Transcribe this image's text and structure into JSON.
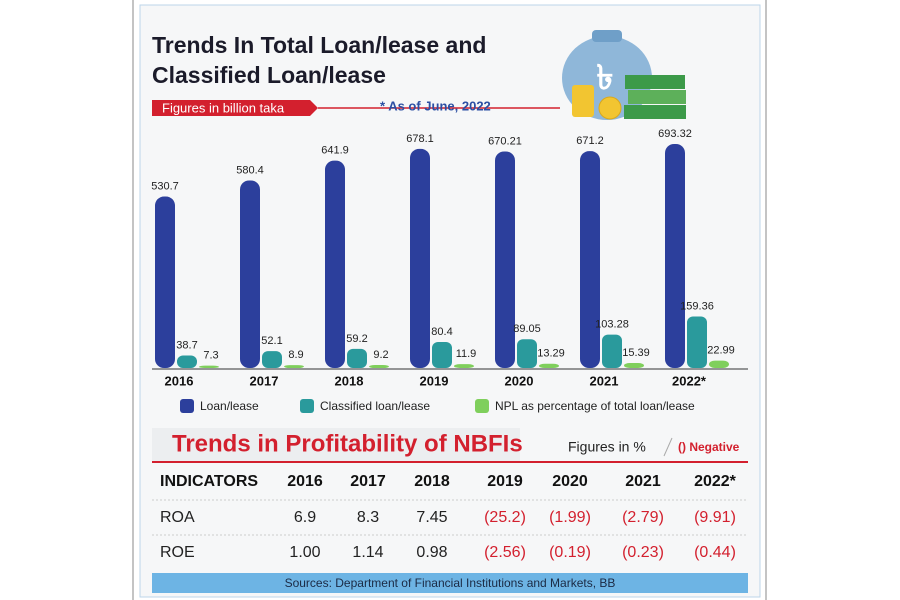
{
  "chart_data": {
    "type": "bar",
    "title": "Trends In Total Loan/lease and Classified Loan/lease",
    "subtitle": "Figures in billion taka",
    "note": "* As of June, 2022",
    "categories": [
      "2016",
      "2017",
      "2018",
      "2019",
      "2020",
      "2021",
      "2022*"
    ],
    "series": [
      {
        "name": "Loan/lease",
        "color": "#2c3f9c",
        "values": [
          530.7,
          580.4,
          641.9,
          678.1,
          670.21,
          671.2,
          693.32
        ]
      },
      {
        "name": "Classified loan/lease",
        "color": "#2a9a9c",
        "values": [
          38.7,
          52.1,
          59.2,
          80.4,
          89.05,
          103.28,
          159.36
        ]
      },
      {
        "name": "NPL as percentage of total loan/lease",
        "color": "#7fcf5c",
        "values": [
          7.3,
          8.9,
          9.2,
          11.9,
          13.29,
          15.39,
          22.99
        ]
      }
    ]
  },
  "table": {
    "title": "Trends in Profitability of NBFIs",
    "unit_note": "Figures in %",
    "negative_note": "() Negative",
    "columns": [
      "INDICATORS",
      "2016",
      "2017",
      "2018",
      "2019",
      "2020",
      "2021",
      "2022*"
    ],
    "rows": [
      [
        "ROA",
        "6.9",
        "8.3",
        "7.45",
        "(25.2)",
        "(1.99)",
        "(2.79)",
        "(9.91)"
      ],
      [
        "ROE",
        "1.00",
        "1.14",
        "0.98",
        "(2.56)",
        "(0.19)",
        "(0.23)",
        "(0.44)"
      ]
    ]
  },
  "source": "Sources: Department of Financial Institutions and Markets, BB"
}
